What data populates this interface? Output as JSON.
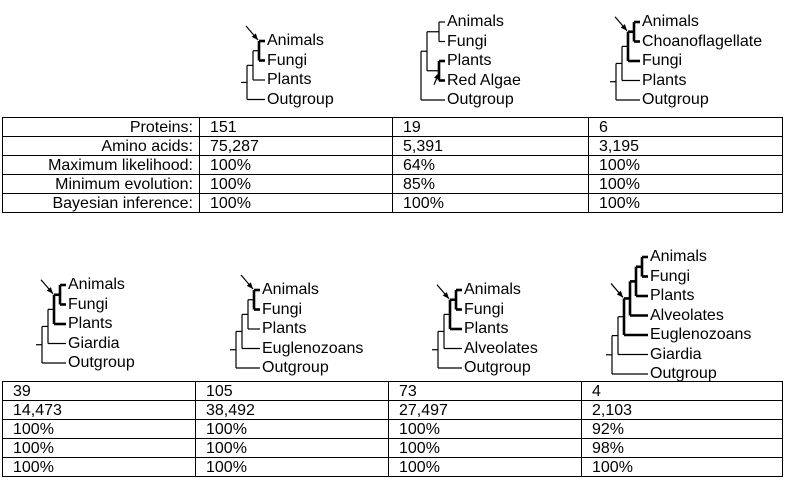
{
  "trees": [
    {
      "taxa": [
        "Animals",
        "Fungi",
        "Plants",
        "Outgroup"
      ],
      "marked_node": "Animals+Fungi"
    },
    {
      "taxa": [
        "Animals",
        "Fungi",
        "Plants",
        "Red Algae",
        "Outgroup"
      ],
      "marked_node": "Plants+Red Algae"
    },
    {
      "taxa": [
        "Animals",
        "Choanoflagellate",
        "Fungi",
        "Plants",
        "Outgroup"
      ],
      "marked_node": "Animals+Choanoflagellate+Fungi"
    },
    {
      "taxa": [
        "Animals",
        "Fungi",
        "Plants",
        "Giardia",
        "Outgroup"
      ],
      "marked_node": "Animals+Fungi+Plants"
    },
    {
      "taxa": [
        "Animals",
        "Fungi",
        "Plants",
        "Euglenozoans",
        "Outgroup"
      ],
      "marked_node": "Animals+Fungi"
    },
    {
      "taxa": [
        "Animals",
        "Fungi",
        "Plants",
        "Alveolates",
        "Outgroup"
      ],
      "marked_node": "Animals+Fungi+Plants"
    },
    {
      "taxa": [
        "Animals",
        "Fungi",
        "Plants",
        "Alveolates",
        "Euglenozoans",
        "Giardia",
        "Outgroup"
      ],
      "marked_node": "Animals+Fungi+Plants+Alveolates+Euglenozoans"
    }
  ],
  "row_labels": [
    "Proteins:",
    "Amino acids:",
    "Maximum likelihood:",
    "Minimum evolution:",
    "Bayesian inference:"
  ],
  "table_top": [
    [
      "151",
      "19",
      "6"
    ],
    [
      "75,287",
      "5,391",
      "3,195"
    ],
    [
      "100%",
      "64%",
      "100%"
    ],
    [
      "100%",
      "85%",
      "100%"
    ],
    [
      "100%",
      "100%",
      "100%"
    ]
  ],
  "table_bottom": [
    [
      "39",
      "105",
      "73",
      "4"
    ],
    [
      "14,473",
      "38,492",
      "27,497",
      "2,103"
    ],
    [
      "100%",
      "100%",
      "100%",
      "92%"
    ],
    [
      "100%",
      "100%",
      "100%",
      "98%"
    ],
    [
      "100%",
      "100%",
      "100%",
      "100%"
    ]
  ]
}
